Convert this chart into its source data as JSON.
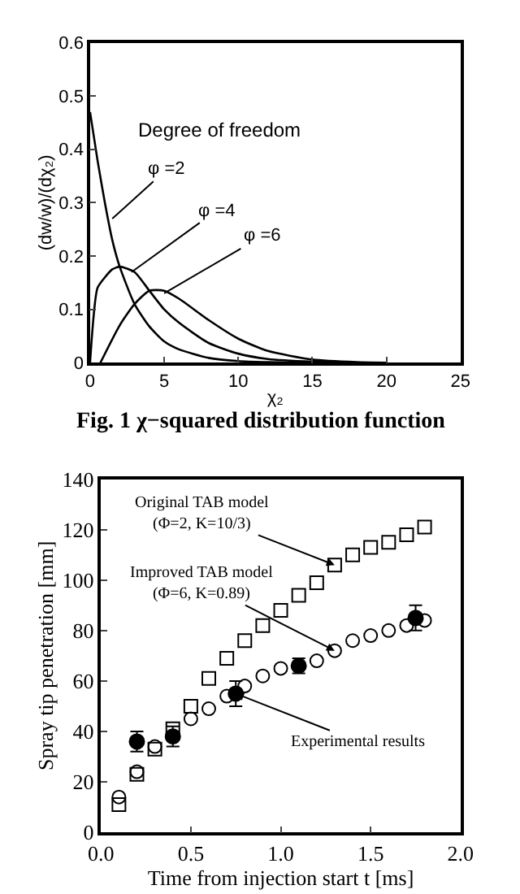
{
  "chart_data": [
    {
      "type": "line",
      "xlabel": "χ₂",
      "ylabel": "(dw/w)/(dχ₂)",
      "legend_title": "Degree of freedom",
      "xlim": [
        0,
        25
      ],
      "xticks": [
        0,
        5,
        10,
        15,
        20,
        25
      ],
      "ylim": [
        0,
        0.6
      ],
      "yticks": [
        0,
        0.1,
        0.2,
        0.3,
        0.4,
        0.5,
        0.6
      ],
      "annotations": [
        "Fig. 1 χ−squared distribution function"
      ],
      "series": [
        {
          "name": "φ =2",
          "color": "#000000",
          "x": [
            0,
            0.5,
            1,
            1.5,
            2,
            3,
            4,
            5,
            6,
            8,
            10,
            12,
            15,
            18
          ],
          "values": [
            0.47,
            0.38,
            0.3,
            0.23,
            0.18,
            0.11,
            0.068,
            0.04,
            0.025,
            0.009,
            0.003,
            0.001,
            0,
            0
          ]
        },
        {
          "name": "φ =4",
          "color": "#000000",
          "x": [
            0,
            0.5,
            1,
            1.5,
            2,
            3,
            4,
            5,
            6,
            8,
            10,
            12,
            15,
            18
          ],
          "values": [
            0,
            0.14,
            0.16,
            0.175,
            0.18,
            0.17,
            0.135,
            0.1,
            0.075,
            0.037,
            0.017,
            0.007,
            0.002,
            0
          ]
        },
        {
          "name": "φ =6",
          "color": "#000000",
          "x": [
            0.7,
            2,
            3,
            4,
            5,
            6,
            8,
            10,
            12,
            15,
            18,
            20
          ],
          "values": [
            0,
            0.07,
            0.11,
            0.135,
            0.135,
            0.12,
            0.08,
            0.045,
            0.022,
            0.006,
            0.001,
            0
          ]
        }
      ]
    },
    {
      "type": "scatter",
      "xlabel": "Time from injection start t [ms]",
      "ylabel": "Spray tip penetration [mm]",
      "xlim": [
        0,
        2
      ],
      "xticks": [
        {
          "value": 0,
          "label": "0.0"
        },
        0.5,
        {
          "value": 1,
          "label": "1.0"
        },
        1.5,
        {
          "value": 2,
          "label": "2.0"
        }
      ],
      "ylim": [
        0,
        140
      ],
      "yticks": [
        0,
        20,
        40,
        60,
        80,
        100,
        120,
        140
      ],
      "series": [
        {
          "name": "Original TAB model\n(Φ=2, K=10/3)",
          "color": "#000000",
          "marker": "square",
          "x": [
            0.1,
            0.2,
            0.3,
            0.4,
            0.5,
            0.6,
            0.7,
            0.8,
            0.9,
            1.0,
            1.1,
            1.2,
            1.3,
            1.4,
            1.5,
            1.6,
            1.7,
            1.8
          ],
          "values": [
            11,
            23,
            33,
            41,
            50,
            61,
            69,
            76,
            82,
            88,
            94,
            99,
            106,
            110,
            113,
            115,
            118,
            121
          ]
        },
        {
          "name": "Improved TAB model\n(Φ=6, K=0.89)",
          "color": "#000000",
          "marker": "circle",
          "x": [
            0.1,
            0.2,
            0.3,
            0.4,
            0.5,
            0.6,
            0.7,
            0.8,
            0.9,
            1.0,
            1.1,
            1.2,
            1.3,
            1.4,
            1.5,
            1.6,
            1.7,
            1.8
          ],
          "values": [
            14,
            24,
            34,
            null,
            45,
            49,
            54,
            58,
            62,
            65,
            null,
            68,
            72,
            76,
            78,
            80,
            82,
            84
          ]
        },
        {
          "name": "Experimental results",
          "color": "#000000",
          "marker": "circle",
          "x": [
            0.2,
            0.4,
            0.75,
            1.1,
            1.75
          ],
          "values": [
            36,
            38,
            55,
            66,
            85
          ],
          "errors": [
            4,
            4,
            5,
            3,
            5
          ]
        }
      ]
    }
  ]
}
